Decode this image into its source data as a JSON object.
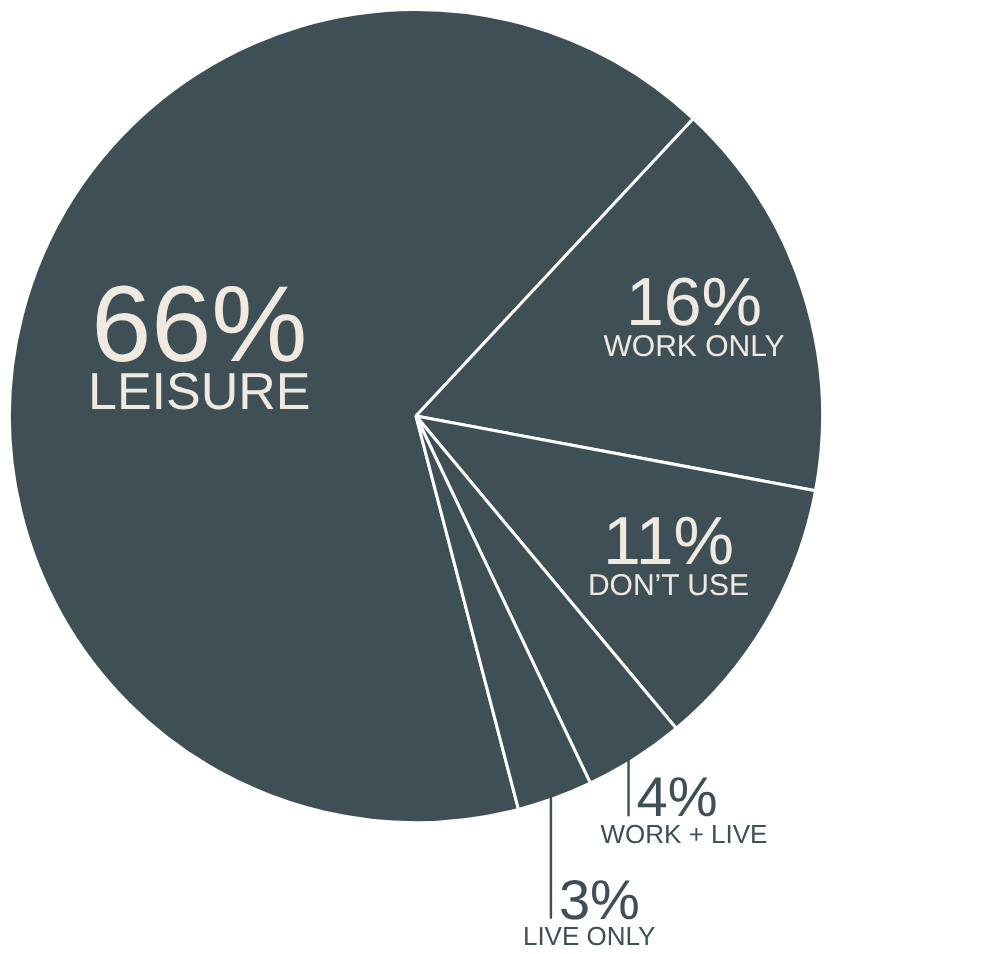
{
  "chart_data": {
    "type": "pie",
    "categories": [
      "LEISURE",
      "WORK ONLY",
      "DON’T USE",
      "WORK + LIVE",
      "LIVE ONLY"
    ],
    "values": [
      66,
      16,
      11,
      4,
      3
    ],
    "colors": [
      "#3e4f56",
      "#3e4f56",
      "#3e4f56",
      "#3e4f56",
      "#3e4f56"
    ],
    "value_labels": [
      "66%",
      "16%",
      "11%",
      "4%",
      "3%"
    ]
  }
}
